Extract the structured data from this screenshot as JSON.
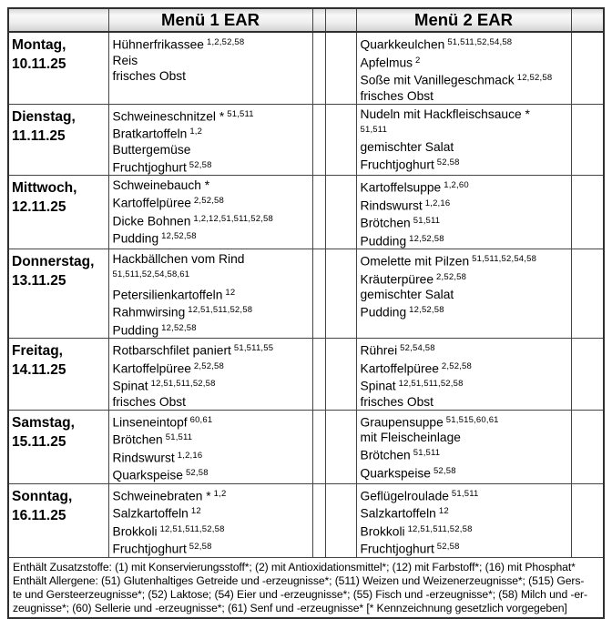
{
  "header": {
    "day_col": "",
    "menu1": "Menü 1 EAR",
    "menu2": "Menü 2 EAR"
  },
  "rows": [
    {
      "day": "Montag,",
      "date": "10.11.25",
      "menu1": [
        {
          "name": "Hühnerfrikassee",
          "sup": "1,2,52,58"
        },
        {
          "name": "Reis"
        },
        {
          "name": "frisches Obst"
        }
      ],
      "menu2": [
        {
          "name": "Quarkkeulchen",
          "sup": "51,511,52,54,58"
        },
        {
          "name": "Apfelmus",
          "sup": "2"
        },
        {
          "name": "Soße mit Vanillegeschmack",
          "sup": "12,52,58"
        },
        {
          "name": "frisches Obst"
        }
      ]
    },
    {
      "day": "Dienstag,",
      "date": "11.11.25",
      "menu1": [
        {
          "name": "Schweineschnitzel *",
          "sup": "51,511"
        },
        {
          "name": "Bratkartoffeln",
          "sup": "1,2"
        },
        {
          "name": "Buttergemüse"
        },
        {
          "name": "Fruchtjoghurt",
          "sup": "52,58"
        }
      ],
      "menu2": [
        {
          "name": "Nudeln mit Hackfleischsauce *",
          "sup": "51,511",
          "supOnNewLine": true
        },
        {
          "name": "gemischter Salat"
        },
        {
          "name": "Fruchtjoghurt",
          "sup": "52,58"
        }
      ]
    },
    {
      "day": "Mittwoch,",
      "date": "12.11.25",
      "menu1": [
        {
          "name": "Schweinebauch *"
        },
        {
          "name": "Kartoffelpüree",
          "sup": "2,52,58"
        },
        {
          "name": "Dicke Bohnen",
          "sup": "1,2,12,51,511,52,58"
        },
        {
          "name": "Pudding",
          "sup": "12,52,58"
        }
      ],
      "menu2": [
        {
          "name": "Kartoffelsuppe",
          "sup": "1,2,60"
        },
        {
          "name": "Rindswurst",
          "sup": "1,2,16"
        },
        {
          "name": "Brötchen",
          "sup": "51,511"
        },
        {
          "name": "Pudding",
          "sup": "12,52,58"
        }
      ]
    },
    {
      "day": "Donnerstag,",
      "date": "13.11.25",
      "menu1": [
        {
          "name": "Hackbällchen vom Rind",
          "sup": "51,511,52,54,58,61",
          "supOnNewLine": true
        },
        {
          "name": "Petersilienkartoffeln",
          "sup": "12"
        },
        {
          "name": "Rahmwirsing",
          "sup": "12,51,511,52,58"
        },
        {
          "name": "Pudding",
          "sup": "12,52,58"
        }
      ],
      "menu2": [
        {
          "name": "Omelette mit Pilzen",
          "sup": "51,511,52,54,58"
        },
        {
          "name": "Kräuterpüree",
          "sup": "2,52,58"
        },
        {
          "name": "gemischter Salat"
        },
        {
          "name": "Pudding",
          "sup": "12,52,58"
        }
      ]
    },
    {
      "day": "Freitag,",
      "date": "14.11.25",
      "menu1": [
        {
          "name": "Rotbarschfilet paniert",
          "sup": "51,511,55"
        },
        {
          "name": "Kartoffelpüree",
          "sup": "2,52,58"
        },
        {
          "name": "Spinat",
          "sup": "12,51,511,52,58"
        },
        {
          "name": "frisches Obst"
        }
      ],
      "menu2": [
        {
          "name": "Rührei",
          "sup": "52,54,58"
        },
        {
          "name": "Kartoffelpüree",
          "sup": "2,52,58"
        },
        {
          "name": "Spinat",
          "sup": "12,51,511,52,58"
        },
        {
          "name": "frisches Obst"
        }
      ]
    },
    {
      "day": "Samstag,",
      "date": "15.11.25",
      "menu1": [
        {
          "name": "Linseneintopf",
          "sup": "60,61"
        },
        {
          "name": "Brötchen",
          "sup": "51,511"
        },
        {
          "name": "Rindswurst",
          "sup": "1,2,16"
        },
        {
          "name": "Quarkspeise",
          "sup": "52,58"
        }
      ],
      "menu2": [
        {
          "name": "Graupensuppe",
          "sup": "51,515,60,61"
        },
        {
          "name": "mit Fleischeinlage"
        },
        {
          "name": "Brötchen",
          "sup": "51,511"
        },
        {
          "name": "Quarkspeise",
          "sup": "52,58"
        }
      ]
    },
    {
      "day": "Sonntag,",
      "date": "16.11.25",
      "menu1": [
        {
          "name": "Schweinebraten *",
          "sup": "1,2"
        },
        {
          "name": "Salzkartoffeln",
          "sup": "12"
        },
        {
          "name": "Brokkoli",
          "sup": "12,51,511,52,58"
        },
        {
          "name": "Fruchtjoghurt",
          "sup": "52,58"
        }
      ],
      "menu2": [
        {
          "name": "Geflügelroulade",
          "sup": "51,511"
        },
        {
          "name": "Salzkartoffeln",
          "sup": "12"
        },
        {
          "name": "Brokkoli",
          "sup": "12,51,511,52,58"
        },
        {
          "name": "Fruchtjoghurt",
          "sup": "52,58"
        }
      ]
    }
  ],
  "footnotes": {
    "lines": [
      "Enthält Zusatzstoffe: (1) mit Konservierungsstoff*; (2) mit Antioxidationsmittel*; (12) mit Farbstoff*; (16) mit Phosphat*",
      "Enthält Allergene: (51) Glutenhaltiges Getreide und -erzeugnisse*; (511) Weizen und Weizenerzeugnisse*; (515) Gers-",
      "te und Gersteerzeugnisse*; (52) Laktose; (54) Eier und -erzeugnisse*; (55) Fisch und -erzeugnisse*; (58) Milch und -er-",
      "zeugnisse*; (60) Sellerie und -erzeugnisse*; (61) Senf und -erzeugnisse*   [* Kennzeichnung gesetzlich vorgegeben]"
    ]
  }
}
